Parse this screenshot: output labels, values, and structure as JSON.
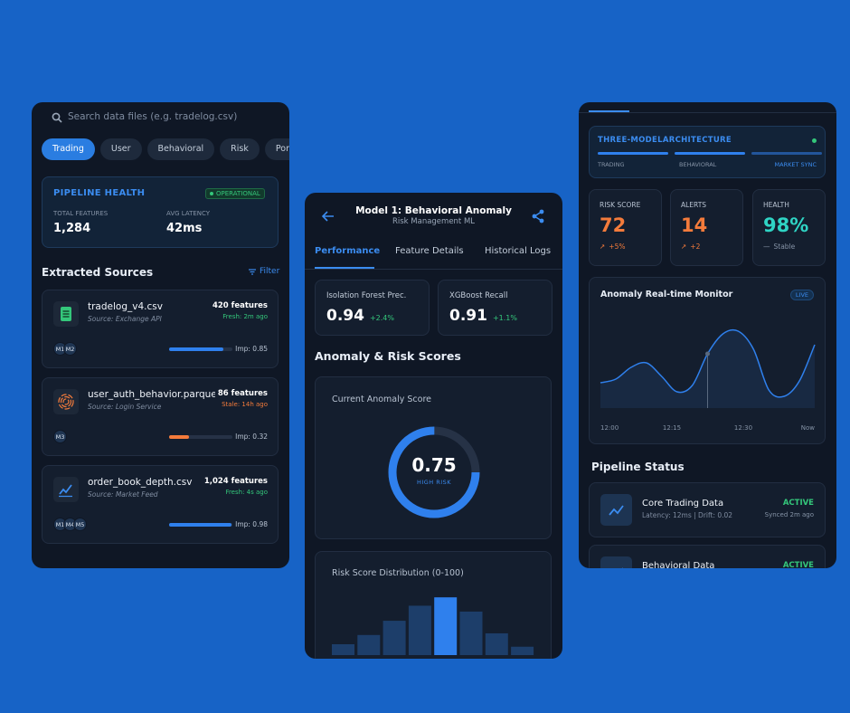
{
  "left": {
    "search": "Search data files (e.g. tradelog.csv)",
    "tabs": [
      "Trading",
      "User",
      "Behavioral",
      "Risk",
      "Portfolio"
    ],
    "health": {
      "title": "PIPELINE HEALTH",
      "status": "OPERATIONAL",
      "stats": [
        {
          "label": "TOTAL FEATURES",
          "value": "1,284"
        },
        {
          "label": "AVG LATENCY",
          "value": "42ms"
        }
      ]
    },
    "sources_title": "Extracted Sources",
    "filter": "Filter",
    "sources": [
      {
        "name": "tradelog_v4.csv",
        "source": "Source: Exchange API",
        "features": "420 features",
        "freshness": "Fresh: 2m ago",
        "color": "#34c77b",
        "models": [
          "M1",
          "M2"
        ],
        "importance": {
          "value": 0.85,
          "label": "Imp: 0.85"
        }
      },
      {
        "name": "user_auth_behavior.parquet",
        "source": "Source: Login Service",
        "features": "86 features",
        "freshness": "Stale: 14h ago",
        "color": "#f47b3b",
        "models": [
          "M3"
        ],
        "importance": {
          "value": 0.32,
          "label": "Imp: 0.32"
        }
      },
      {
        "name": "order_book_depth.csv",
        "source": "Source: Market Feed",
        "features": "1,024 features",
        "freshness": "Fresh: 4s ago",
        "color": "#34c77b",
        "models": [
          "M1",
          "M4",
          "M5"
        ],
        "importance": {
          "value": 0.98,
          "label": "Imp: 0.98"
        }
      }
    ]
  },
  "middle": {
    "title": "Model 1: Behavioral Anomaly",
    "subtitle": "Risk Management ML",
    "tabs": [
      "Performance",
      "Feature Details",
      "Historical Logs"
    ],
    "metrics": [
      {
        "label": "Isolation Forest Prec.",
        "value": "0.94",
        "change": "+2.4%"
      },
      {
        "label": "XGBoost Recall",
        "value": "0.91",
        "change": "+1.1%"
      }
    ],
    "section": "Anomaly & Risk Scores",
    "gauge": {
      "title": "Current Anomaly Score",
      "value": 0.75,
      "label": "HIGH RISK"
    },
    "distribution": {
      "type": "bar",
      "title": "Risk Score Distribution (0-100)",
      "values": [
        13,
        24,
        41,
        59,
        69,
        52,
        26,
        10
      ],
      "ylim": [
        0,
        80
      ],
      "highlight": 4
    }
  },
  "right": {
    "arch": {
      "title": "THREE-MODELARCHITECTURE",
      "stages": [
        {
          "label": "TRADING",
          "color": "#2f80ed"
        },
        {
          "label": "BEHAVIORAL",
          "color": "#2f80ed"
        },
        {
          "label": "MARKET SYNC",
          "color": "#2f80ed"
        }
      ]
    },
    "stats": [
      {
        "label": "RISK SCORE",
        "value": 72,
        "change": "+5%",
        "color": "#f47b3b"
      },
      {
        "label": "ALERTS",
        "value": 14,
        "change": "+2",
        "color": "#f47b3b"
      },
      {
        "label": "HEALTH",
        "value": "98%",
        "change": "Stable",
        "color": "#2fd4c4"
      }
    ],
    "monitor": {
      "type": "line",
      "title": "Anomaly Real-time Monitor",
      "badge": "LIVE",
      "x_labels": [
        "12:00",
        "12:15",
        "12:30",
        "Now"
      ],
      "values": [
        28,
        32,
        45,
        50,
        35,
        18,
        25,
        60,
        82,
        85,
        65,
        20,
        13,
        30,
        70
      ],
      "ylim": [
        0,
        100
      ],
      "marker": 7
    },
    "status_title": "Pipeline Status",
    "pipelines": [
      {
        "name": "Core Trading Data",
        "detail": "Latency: 12ms | Drift: 0.02",
        "status": "ACTIVE",
        "synced": "Synced 2m ago"
      },
      {
        "name": "Behavioral Data",
        "status": "ACTIVE"
      }
    ]
  }
}
